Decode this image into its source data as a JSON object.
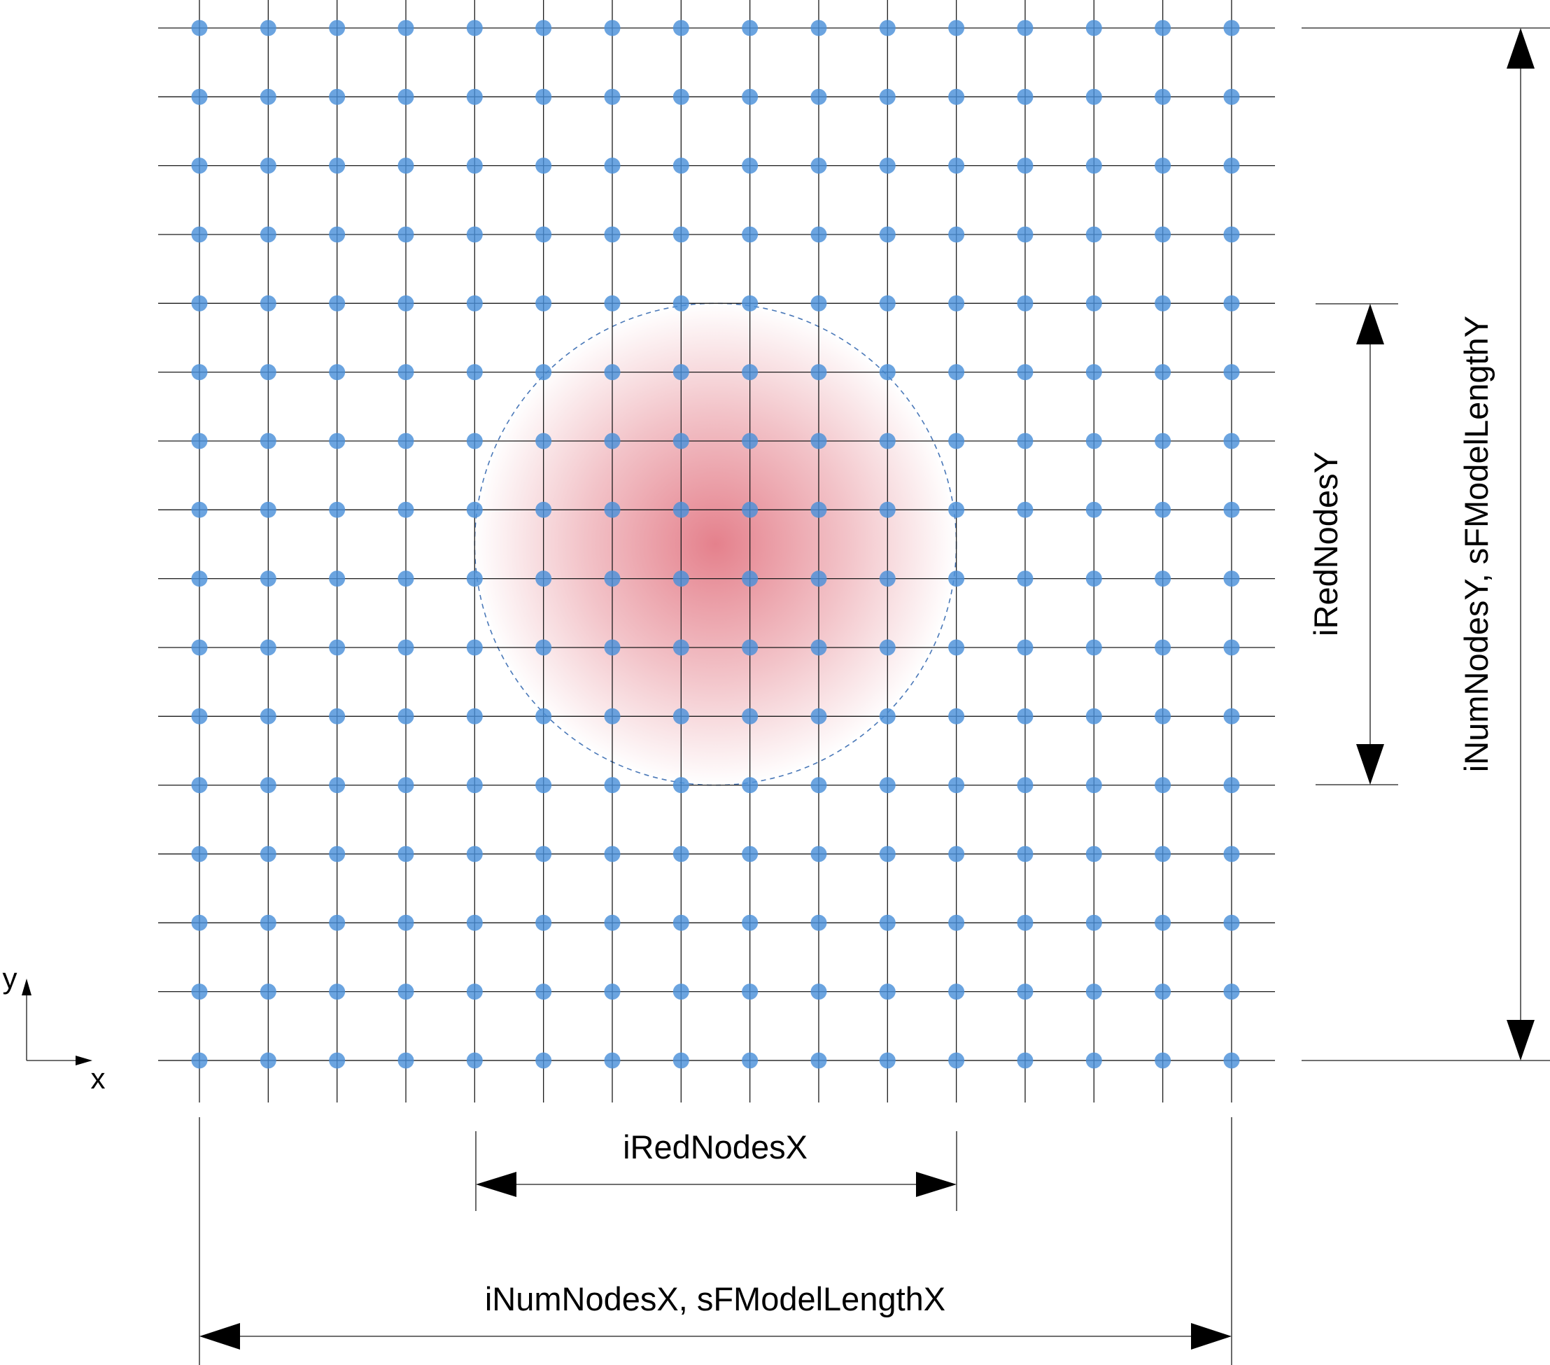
{
  "grid": {
    "columns": 16,
    "rows": 16
  },
  "region": {
    "center": {
      "col": 7.5,
      "row": 7.5
    },
    "radius_cells": 3.5
  },
  "labels": {
    "reduced_x": "iRedNodesX",
    "reduced_y": "iRedNodesY",
    "total_x": "iNumNodesX, sFModelLengthX",
    "total_y": "iNumNodesY, sFModelLengthY",
    "axis_x": "x",
    "axis_y": "y"
  },
  "colors": {
    "node": "#4a90d9",
    "grid_line": "#1a1a1a",
    "region_fill": "#e37a86",
    "region_outline": "#4a78b8",
    "arrow": "#000000"
  }
}
